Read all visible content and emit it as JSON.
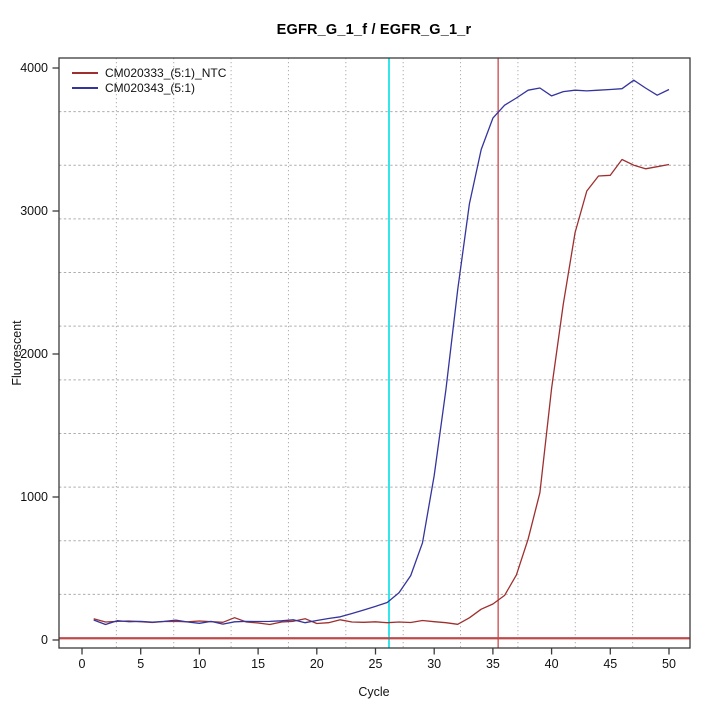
{
  "chart_data": {
    "type": "line",
    "title": "EGFR_G_1_f / EGFR_G_1_r",
    "xlabel": "Cycle",
    "ylabel": "Fluorescent",
    "xlim": [
      -1.96,
      51.79
    ],
    "ylim": [
      -56,
      4070
    ],
    "xticks": [
      0,
      5,
      10,
      15,
      20,
      25,
      30,
      35,
      40,
      45,
      50
    ],
    "yticks": [
      0,
      1000,
      2000,
      3000,
      4000
    ],
    "grid": {
      "on": true,
      "divisions": 11,
      "color": "#adadad"
    },
    "legend_position": "top-left",
    "axis_color": "#3b3b3b",
    "text_color": "#111111",
    "x_start_cycle": 1,
    "series": [
      {
        "name": "CM020333_(5:1)_NTC",
        "color": "#9e2f2f",
        "values": [
          148,
          126,
          130,
          133,
          128,
          122,
          129,
          131,
          127,
          133,
          128,
          124,
          156,
          126,
          119,
          108,
          126,
          131,
          149,
          115,
          121,
          141,
          126,
          124,
          127,
          121,
          126,
          122,
          136,
          128,
          121,
          110,
          155,
          215,
          252,
          312,
          455,
          705,
          1030,
          1760,
          2350,
          2850,
          3140,
          3245,
          3250,
          3360,
          3320,
          3295,
          3310,
          3325
        ]
      },
      {
        "name": "CM020343_(5:1)",
        "color": "#34349e",
        "values": [
          140,
          108,
          135,
          128,
          130,
          125,
          130,
          139,
          126,
          117,
          130,
          111,
          127,
          130,
          129,
          130,
          134,
          141,
          121,
          136,
          150,
          162,
          185,
          210,
          235,
          262,
          330,
          450,
          680,
          1150,
          1750,
          2450,
          3050,
          3430,
          3650,
          3740,
          3790,
          3845,
          3860,
          3805,
          3835,
          3845,
          3840,
          3845,
          3850,
          3855,
          3915,
          3860,
          3810,
          3850
        ]
      }
    ],
    "reference_lines": {
      "horizontal": [
        {
          "name": "threshold-line",
          "y": 12,
          "color": "#bf4a4a",
          "width": 2.2
        }
      ],
      "vertical": [
        {
          "name": "ct-line-cm020343",
          "x": 26.15,
          "color": "#00dfe6",
          "width": 1.6
        },
        {
          "name": "ct-line-cm020333",
          "x": 35.45,
          "color": "#d46a6a",
          "width": 1.6
        }
      ]
    }
  }
}
